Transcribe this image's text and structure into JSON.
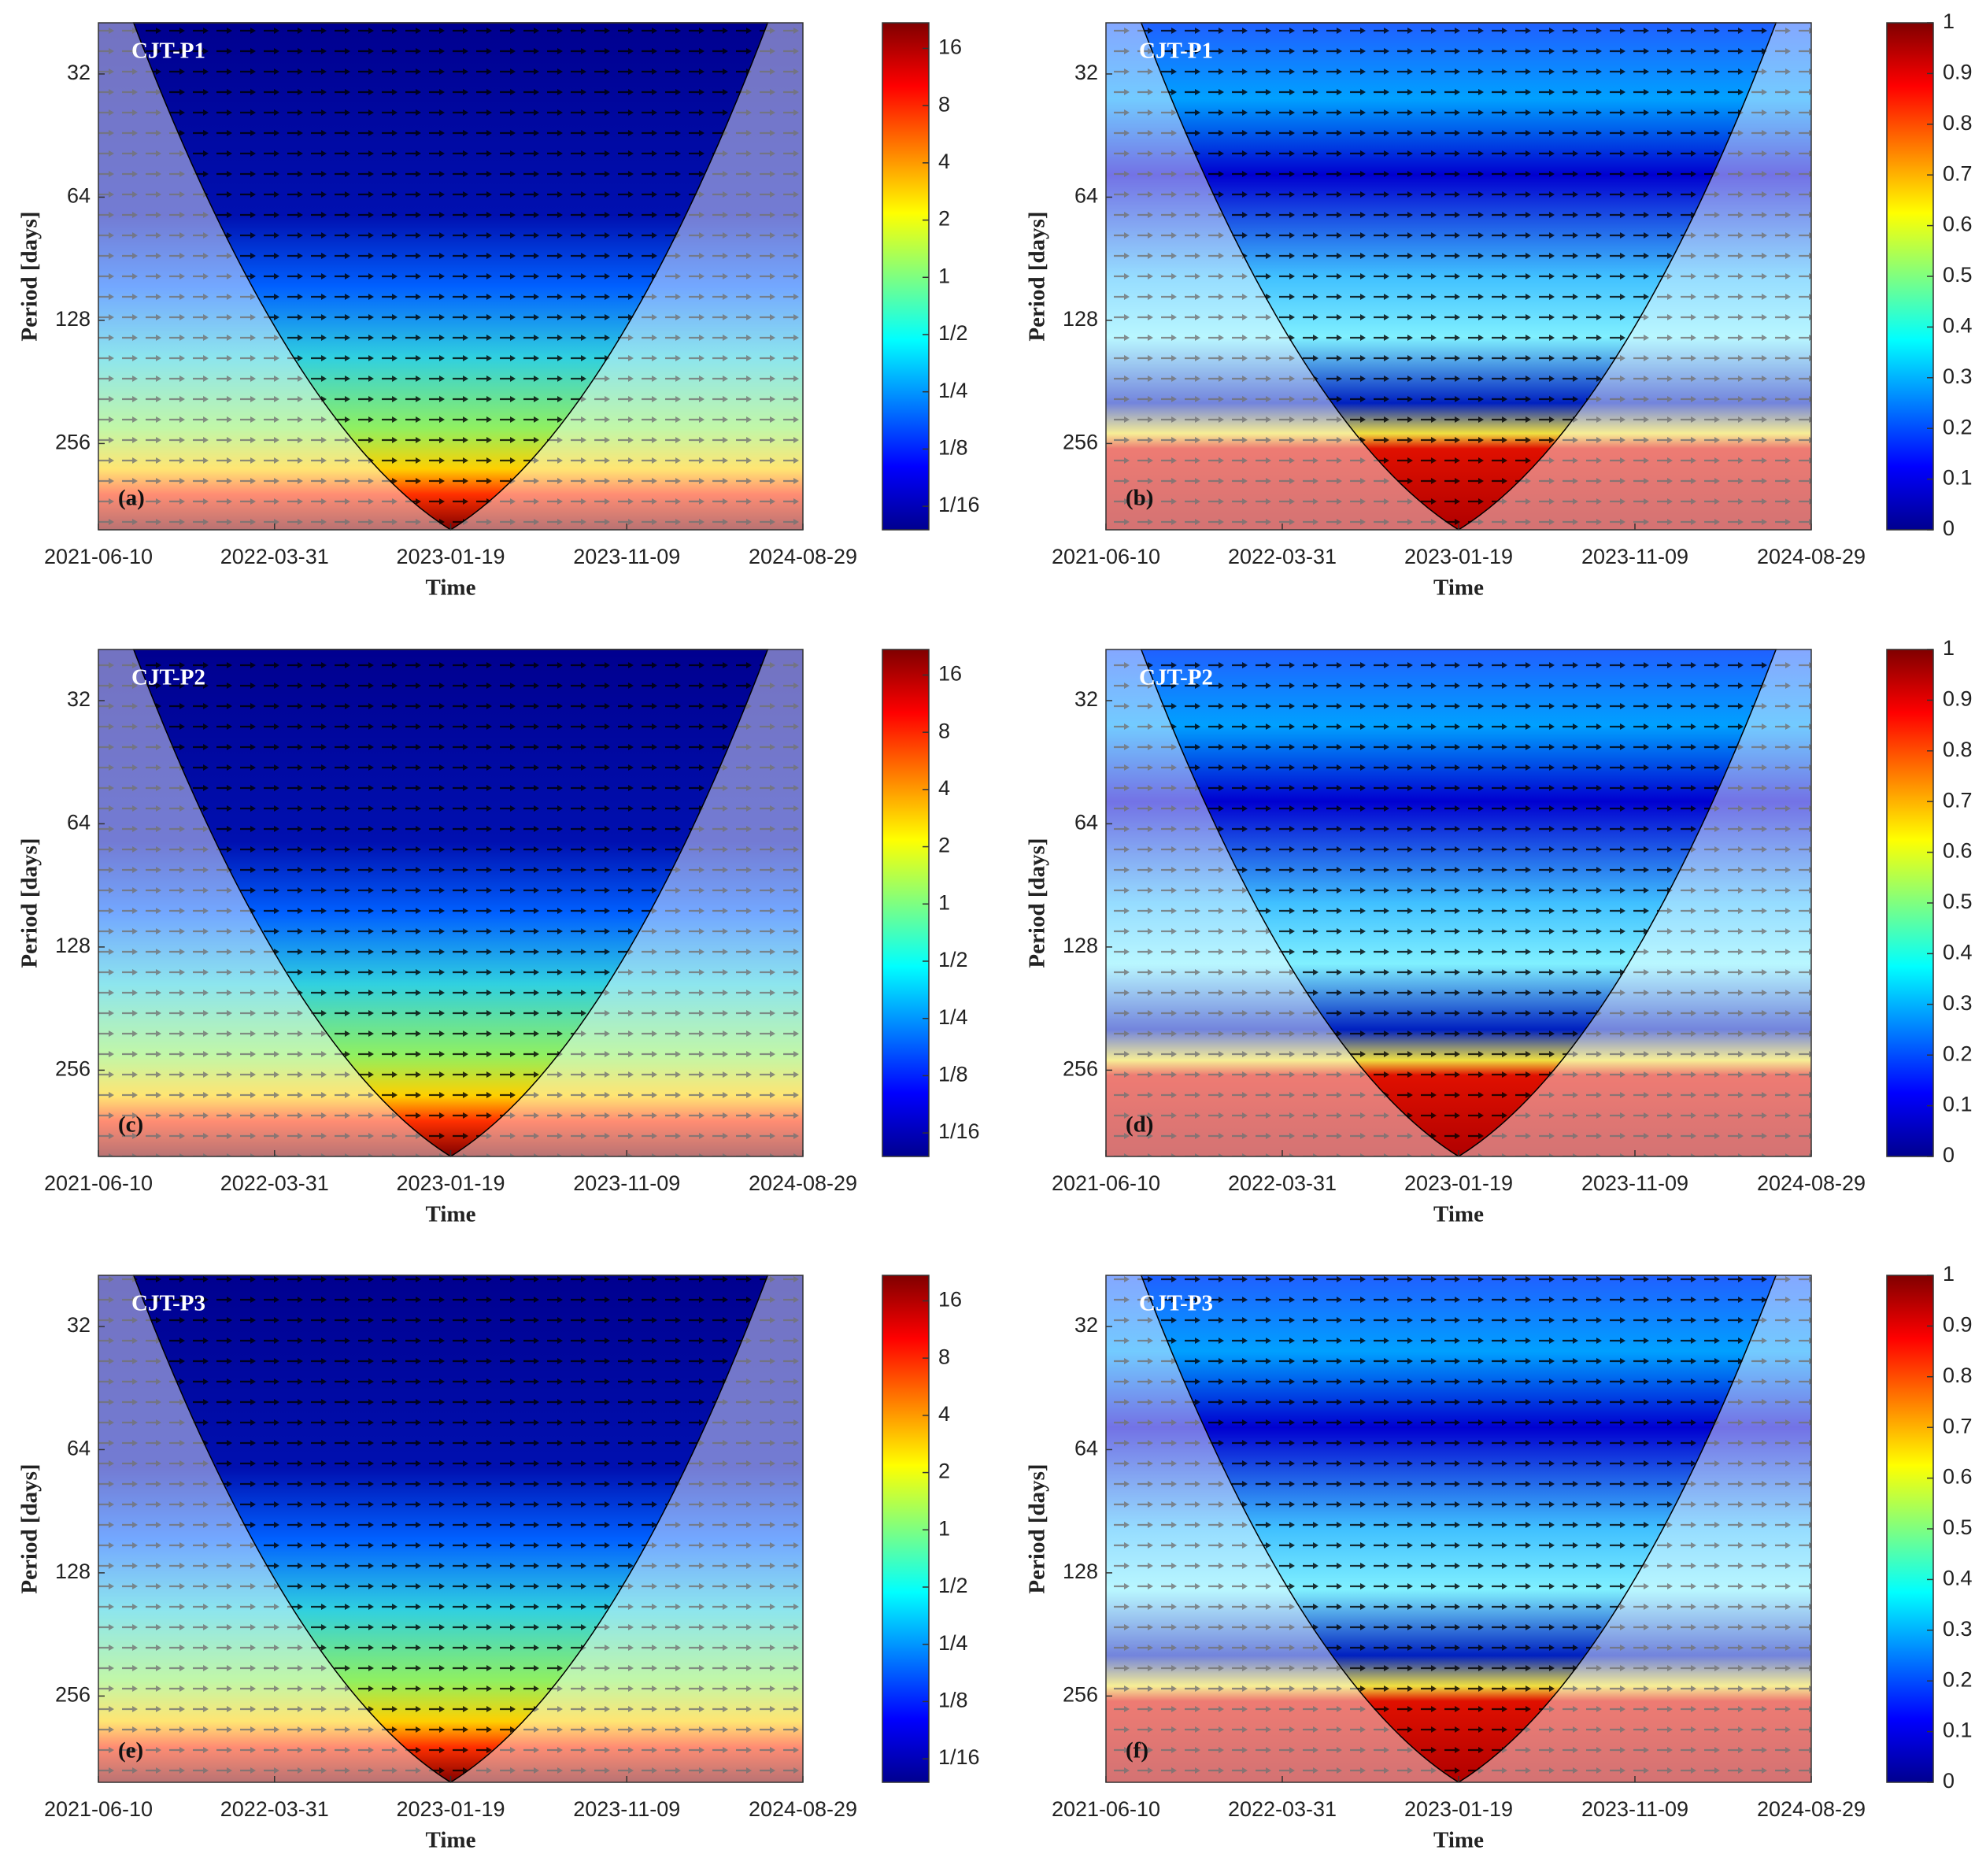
{
  "chart_data": [
    {
      "type": "wavelet",
      "site_label": "CJT-P1",
      "panel_label": "(a)",
      "xlabel": "Time",
      "ylabel": "Period [days]",
      "xlim": [
        "2021-06-10",
        "2024-08-29"
      ],
      "xticks": [
        "2021-06-10",
        "2022-03-31",
        "2023-01-19",
        "2023-11-09",
        "2024-08-29"
      ],
      "ylim": [
        24,
        416
      ],
      "yticks": [
        32,
        64,
        128,
        256
      ],
      "y_log_scale": true,
      "y_reversed": true,
      "clim": [
        0.047,
        21.8
      ],
      "c_log_scale": true,
      "cticks": [
        {
          "value": 0.0625,
          "label": "1/16"
        },
        {
          "value": 0.125,
          "label": "1/8"
        },
        {
          "value": 0.25,
          "label": "1/4"
        },
        {
          "value": 0.5,
          "label": "1/2"
        },
        1,
        2,
        4,
        8,
        16
      ]
    },
    {
      "type": "wavelet",
      "site_label": "CJT-P1",
      "panel_label": "(b)",
      "xlabel": "Time",
      "ylabel": "Period [days]",
      "xlim": [
        "2021-06-10",
        "2024-08-29"
      ],
      "xticks": [
        "2021-06-10",
        "2022-03-31",
        "2023-01-19",
        "2023-11-09",
        "2024-08-29"
      ],
      "ylim": [
        24,
        416
      ],
      "yticks": [
        32,
        64,
        128,
        256
      ],
      "y_log_scale": true,
      "y_reversed": true,
      "clim": [
        0,
        1
      ],
      "c_log_scale": false,
      "cticks": [
        0,
        0.1,
        0.2,
        0.3,
        0.4,
        0.5,
        0.6,
        0.7,
        0.8,
        0.9,
        1
      ]
    },
    {
      "type": "wavelet",
      "site_label": "CJT-P2",
      "panel_label": "(c)",
      "xlabel": "Time",
      "ylabel": "Period [days]",
      "xlim": [
        "2021-06-10",
        "2024-08-29"
      ],
      "xticks": [
        "2021-06-10",
        "2022-03-31",
        "2023-01-19",
        "2023-11-09",
        "2024-08-29"
      ],
      "ylim": [
        24,
        416
      ],
      "yticks": [
        32,
        64,
        128,
        256
      ],
      "y_log_scale": true,
      "y_reversed": true,
      "clim": [
        0.047,
        21.8
      ],
      "c_log_scale": true,
      "cticks": [
        {
          "value": 0.0625,
          "label": "1/16"
        },
        {
          "value": 0.125,
          "label": "1/8"
        },
        {
          "value": 0.25,
          "label": "1/4"
        },
        {
          "value": 0.5,
          "label": "1/2"
        },
        1,
        2,
        4,
        8,
        16
      ]
    },
    {
      "type": "wavelet",
      "site_label": "CJT-P2",
      "panel_label": "(d)",
      "xlabel": "Time",
      "ylabel": "Period [days]",
      "xlim": [
        "2021-06-10",
        "2024-08-29"
      ],
      "xticks": [
        "2021-06-10",
        "2022-03-31",
        "2023-01-19",
        "2023-11-09",
        "2024-08-29"
      ],
      "ylim": [
        24,
        416
      ],
      "yticks": [
        32,
        64,
        128,
        256
      ],
      "y_log_scale": true,
      "y_reversed": true,
      "clim": [
        0,
        1
      ],
      "c_log_scale": false,
      "cticks": [
        0,
        0.1,
        0.2,
        0.3,
        0.4,
        0.5,
        0.6,
        0.7,
        0.8,
        0.9,
        1
      ]
    },
    {
      "type": "wavelet",
      "site_label": "CJT-P3",
      "panel_label": "(e)",
      "xlabel": "Time",
      "ylabel": "Period [days]",
      "xlim": [
        "2021-06-10",
        "2024-08-29"
      ],
      "xticks": [
        "2021-06-10",
        "2022-03-31",
        "2023-01-19",
        "2023-11-09",
        "2024-08-29"
      ],
      "ylim": [
        24,
        416
      ],
      "yticks": [
        32,
        64,
        128,
        256
      ],
      "y_log_scale": true,
      "y_reversed": true,
      "clim": [
        0.047,
        21.8
      ],
      "c_log_scale": true,
      "cticks": [
        {
          "value": 0.0625,
          "label": "1/16"
        },
        {
          "value": 0.125,
          "label": "1/8"
        },
        {
          "value": 0.25,
          "label": "1/4"
        },
        {
          "value": 0.5,
          "label": "1/2"
        },
        1,
        2,
        4,
        8,
        16
      ]
    },
    {
      "type": "wavelet",
      "site_label": "CJT-P3",
      "panel_label": "(f)",
      "xlabel": "Time",
      "ylabel": "Period [days]",
      "xlim": [
        "2021-06-10",
        "2024-08-29"
      ],
      "xticks": [
        "2021-06-10",
        "2022-03-31",
        "2023-01-19",
        "2023-11-09",
        "2024-08-29"
      ],
      "ylim": [
        24,
        416
      ],
      "yticks": [
        32,
        64,
        128,
        256
      ],
      "y_log_scale": true,
      "y_reversed": true,
      "clim": [
        0,
        1
      ],
      "c_log_scale": false,
      "cticks": [
        0,
        0.1,
        0.2,
        0.3,
        0.4,
        0.5,
        0.6,
        0.7,
        0.8,
        0.9,
        1
      ]
    }
  ]
}
